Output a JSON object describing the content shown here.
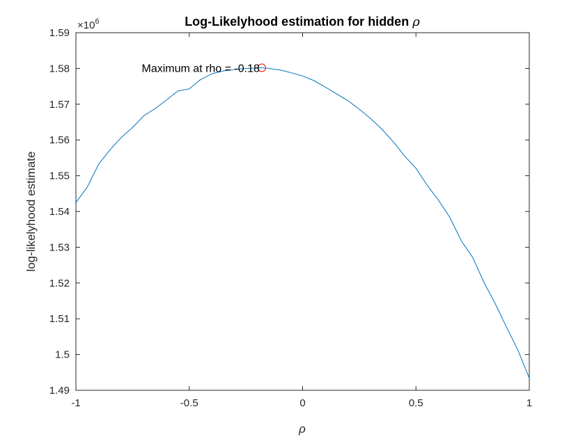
{
  "chart_data": {
    "type": "line",
    "title": "Log-Likelyhood estimation for hidden",
    "title_symbol": "ρ",
    "xlabel": "ρ",
    "ylabel": "log-likelyhood estimate",
    "y_exponent_base": "×10",
    "y_exponent_power": "6",
    "xlim": [
      -1,
      1
    ],
    "ylim": [
      1.49,
      1.59
    ],
    "x_ticks": [
      "-1",
      "-0.5",
      "0",
      "0.5",
      "1"
    ],
    "x_tick_values": [
      -1,
      -0.5,
      0,
      0.5,
      1
    ],
    "y_ticks": [
      "1.49",
      "1.5",
      "1.51",
      "1.52",
      "1.53",
      "1.54",
      "1.55",
      "1.56",
      "1.57",
      "1.58",
      "1.59"
    ],
    "y_tick_values": [
      1.49,
      1.5,
      1.51,
      1.52,
      1.53,
      1.54,
      1.55,
      1.56,
      1.57,
      1.58,
      1.59
    ],
    "grid": false,
    "series": [
      {
        "color": "#0072BD",
        "x": [
          -1.0,
          -0.95,
          -0.9,
          -0.85,
          -0.8,
          -0.75,
          -0.7,
          -0.65,
          -0.6,
          -0.55,
          -0.5,
          -0.45,
          -0.4,
          -0.35,
          -0.3,
          -0.25,
          -0.2,
          -0.18,
          -0.15,
          -0.1,
          -0.05,
          0.0,
          0.05,
          0.1,
          0.15,
          0.2,
          0.25,
          0.3,
          0.35,
          0.4,
          0.45,
          0.5,
          0.55,
          0.6,
          0.65,
          0.7,
          0.75,
          0.8,
          0.85,
          0.9,
          0.95,
          1.0
        ],
        "y": [
          1.5425,
          1.5468,
          1.5532,
          1.5572,
          1.5607,
          1.5635,
          1.5668,
          1.5688,
          1.5712,
          1.5737,
          1.5743,
          1.5769,
          1.5785,
          1.5793,
          1.5797,
          1.58,
          1.5801,
          1.5802,
          1.58,
          1.5796,
          1.5788,
          1.5779,
          1.5766,
          1.5748,
          1.5729,
          1.571,
          1.5686,
          1.566,
          1.563,
          1.5595,
          1.5555,
          1.5521,
          1.5473,
          1.5431,
          1.5383,
          1.5318,
          1.5272,
          1.5202,
          1.5142,
          1.5076,
          1.5012,
          1.4934
        ]
      }
    ],
    "marker": {
      "x": -0.18,
      "y": 1.5802,
      "color": "#FF0000",
      "shape": "circle"
    },
    "annotation": {
      "text": "Maximum at rho = -0.18"
    }
  }
}
